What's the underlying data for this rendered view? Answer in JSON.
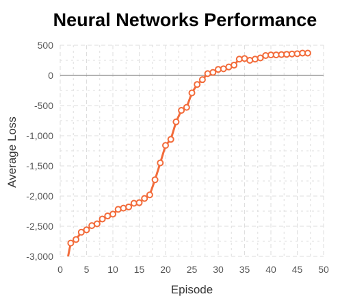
{
  "chart_data": {
    "type": "line",
    "title": "Neural Networks Performance",
    "xlabel": "Episode",
    "ylabel": "Average Loss",
    "xlim": [
      0,
      50
    ],
    "ylim": [
      -3000,
      500
    ],
    "x_ticks": [
      0,
      5,
      10,
      15,
      20,
      25,
      30,
      35,
      40,
      45,
      50
    ],
    "y_ticks": [
      500,
      0,
      -500,
      -1000,
      -1500,
      -2000,
      -2500,
      -3000
    ],
    "x_tick_labels": [
      "0",
      "5",
      "10",
      "15",
      "20",
      "25",
      "30",
      "35",
      "40",
      "45",
      "50"
    ],
    "y_tick_labels": [
      "500",
      "0",
      "-500",
      "-1,000",
      "-1,500",
      "-2,000",
      "-2,500",
      "-3,000"
    ],
    "grid": true,
    "zero_line": true,
    "colors": {
      "series": "#f26b3a",
      "grid": "#dedede",
      "zero_line": "#888888",
      "plot_bg": "#ffffff"
    },
    "series": [
      {
        "x": [
          1.5,
          2,
          3,
          4,
          5,
          6,
          7,
          8,
          9,
          10,
          11,
          12,
          13,
          14,
          15,
          16,
          17,
          18,
          19,
          20,
          21,
          22,
          23,
          24,
          25,
          26,
          27,
          28,
          29,
          30,
          31,
          32,
          33,
          34,
          35,
          36,
          37,
          38,
          39,
          40,
          41,
          42,
          43,
          44,
          45,
          46,
          47
        ],
        "y": [
          -3000,
          -2780,
          -2720,
          -2600,
          -2560,
          -2490,
          -2460,
          -2380,
          -2330,
          -2300,
          -2220,
          -2200,
          -2180,
          -2120,
          -2110,
          -2040,
          -1980,
          -1730,
          -1450,
          -1160,
          -1060,
          -770,
          -580,
          -530,
          -290,
          -150,
          -70,
          30,
          50,
          100,
          110,
          140,
          170,
          270,
          280,
          250,
          270,
          290,
          330,
          340,
          340,
          345,
          350,
          355,
          360,
          370,
          370
        ]
      }
    ]
  }
}
